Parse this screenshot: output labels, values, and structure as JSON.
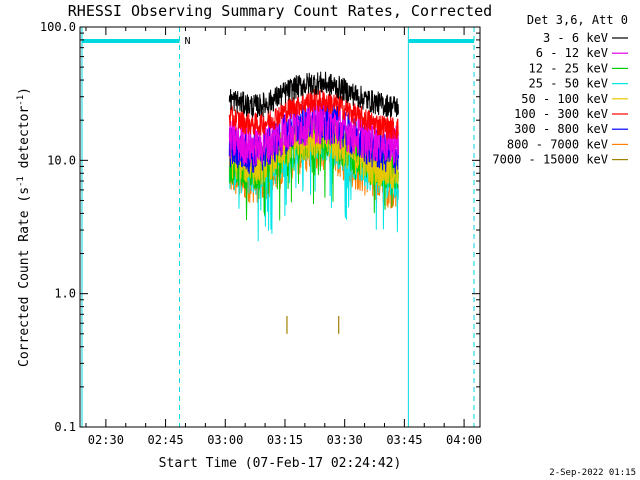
{
  "chart_data": {
    "type": "line",
    "title": "RHESSI Observing Summary Count Rates, Corrected",
    "xlabel": "Start Time (07-Feb-17 02:24:42)",
    "ylabel_main": "Corrected Count Rate (s",
    "ylabel_sup1": "-1",
    "ylabel_mid": " detector",
    "ylabel_sup2": "-1",
    "ylabel_end": ")",
    "yscale": "log",
    "ylim": [
      0.1,
      100.0
    ],
    "xlim_minutes_after_0220": [
      3.5,
      104
    ],
    "y_ticks": [
      "0.1",
      "1.0",
      "10.0",
      "100.0"
    ],
    "x_ticks": [
      {
        "label": "02:30",
        "min": 10
      },
      {
        "label": "02:45",
        "min": 25
      },
      {
        "label": "03:00",
        "min": 40
      },
      {
        "label": "03:15",
        "min": 55
      },
      {
        "label": "03:30",
        "min": 70
      },
      {
        "label": "03:45",
        "min": 85
      },
      {
        "label": "04:00",
        "min": 100
      }
    ],
    "legend_header": "Det 3,6, Att 0",
    "legend_position": "top-right",
    "series": [
      {
        "name": "3 - 6 keV",
        "color": "#000000",
        "start": 30,
        "peak": 38,
        "end": 25
      },
      {
        "name": "6 - 12 keV",
        "color": "#e600e6",
        "start": 15,
        "peak": 19,
        "end": 13
      },
      {
        "name": "12 - 25 keV",
        "color": "#00cc00",
        "start": 10,
        "peak": 15,
        "end": 8
      },
      {
        "name": "25 - 50 keV",
        "color": "#00e5e5",
        "start": 9,
        "peak": 14,
        "end": 7
      },
      {
        "name": "50 - 100 keV",
        "color": "#e6c800",
        "start": 11,
        "peak": 15,
        "end": 8
      },
      {
        "name": "100 - 300 keV",
        "color": "#ff0000",
        "start": 22,
        "peak": 28,
        "end": 17
      },
      {
        "name": "300 - 800 keV",
        "color": "#0000ff",
        "start": 13,
        "peak": 20,
        "end": 11
      },
      {
        "name": "800 - 7000 keV",
        "color": "#ff8000",
        "start": 8,
        "peak": 12,
        "end": 6
      },
      {
        "name": "7000 - 15000 keV",
        "color": "#a08000",
        "start": 0.6,
        "peak": 0.65,
        "end": 0.6
      }
    ],
    "data_interval_minutes": [
      41,
      83.5
    ],
    "night_markers_minutes": [
      4,
      28.5,
      86,
      102.5
    ],
    "saa_bar_minutes": [
      [
        4,
        28.5
      ],
      [
        86,
        102.5
      ]
    ],
    "saa_label": "N",
    "grid": false
  },
  "footer_date": "2-Sep-2022 01:15"
}
